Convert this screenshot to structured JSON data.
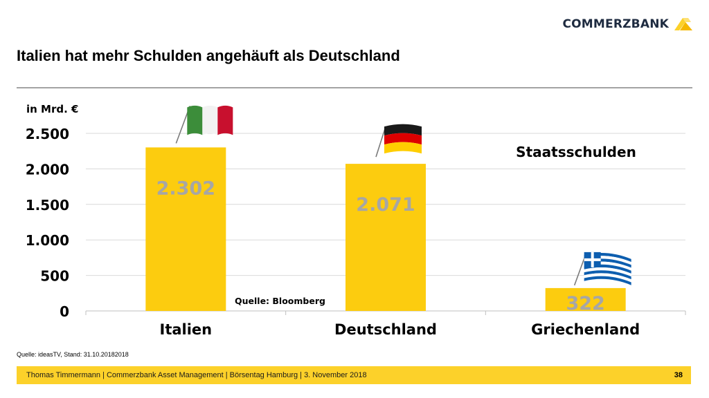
{
  "brand": {
    "name": "COMMERZBANK",
    "accent": "#fcd12a"
  },
  "slide": {
    "title": "Italien hat mehr Schulden angehäuft als Deutschland",
    "source_note": "Quelle: ideasTV, Stand: 31.10.20182018",
    "footer_text": "Thomas Timmermann | Commerzbank Asset Management | Börsentag Hamburg | 3. November 2018",
    "page_number": "38"
  },
  "chart_data": {
    "type": "bar",
    "title": "Staatsschulden",
    "ylabel": "in Mrd. €",
    "xlabel": "",
    "categories": [
      "Italien",
      "Deutschland",
      "Griechenland"
    ],
    "values": [
      2302,
      2071,
      322
    ],
    "value_labels": [
      "2.302",
      "2.071",
      "322"
    ],
    "ylim": [
      0,
      2500
    ],
    "yticks": [
      0,
      500,
      1000,
      1500,
      2000,
      2500
    ],
    "ytick_labels": [
      "0",
      "500",
      "1.000",
      "1.500",
      "2.000",
      "2.500"
    ],
    "grid": true,
    "annotation": "Quelle: Bloomberg",
    "bar_color": "#fccc0f",
    "value_label_color": "#a6a6a6",
    "flags": [
      {
        "category": "Italien",
        "icon": "italy-flag-icon"
      },
      {
        "category": "Deutschland",
        "icon": "germany-flag-icon"
      },
      {
        "category": "Griechenland",
        "icon": "greece-flag-icon"
      }
    ]
  }
}
